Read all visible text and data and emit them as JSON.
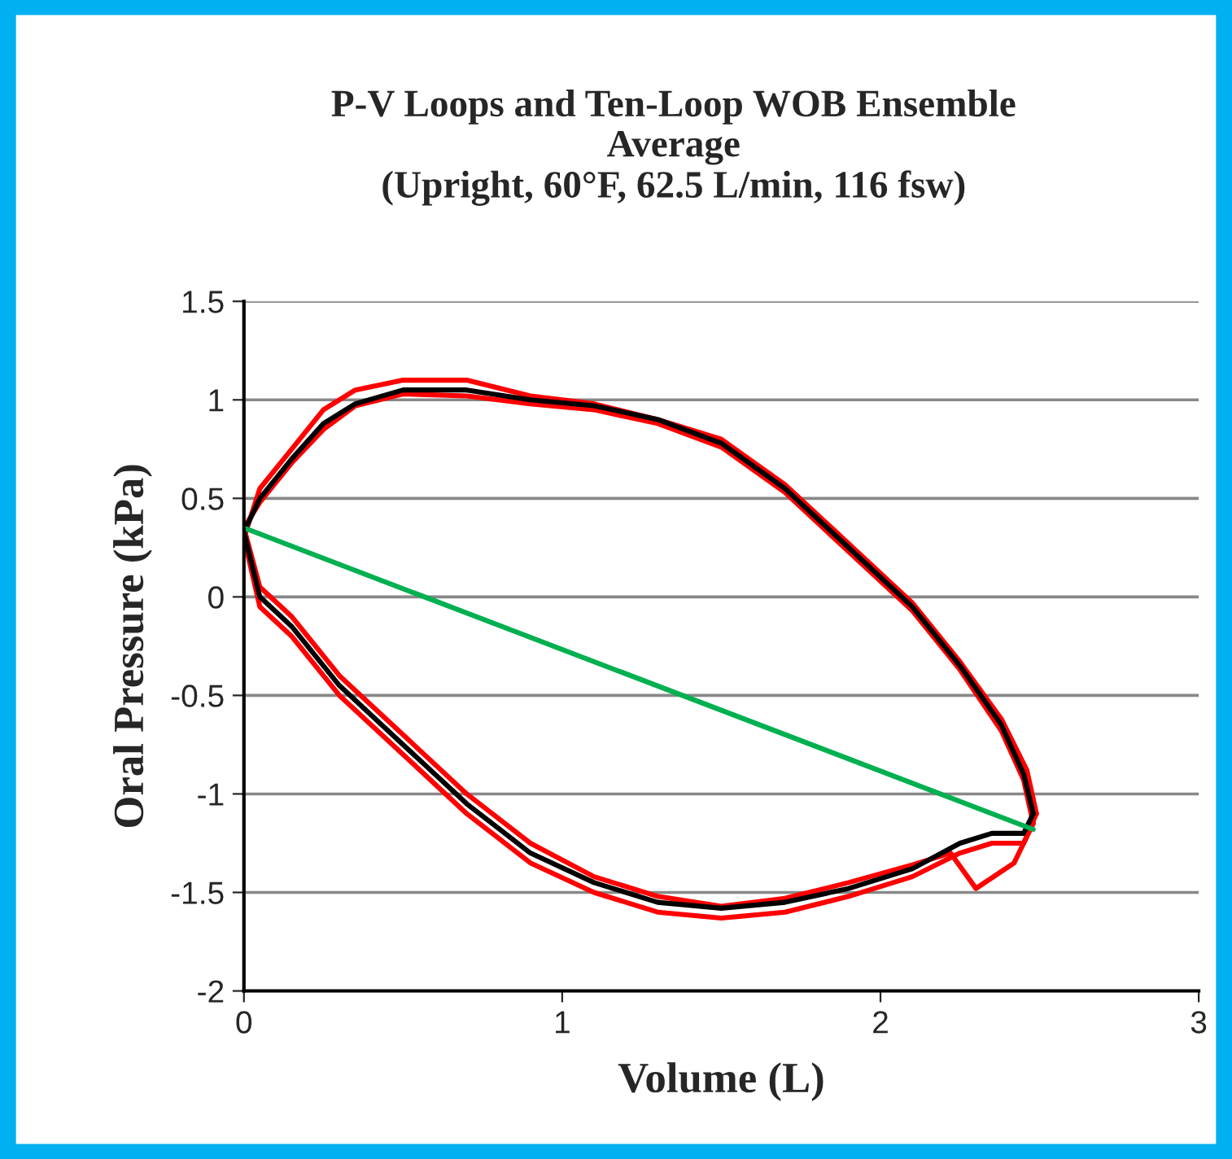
{
  "chart_data": {
    "type": "line",
    "title": "P-V Loops and Ten-Loop WOB Ensemble\nAverage\n(Upright, 60°F, 62.5 L/min, 116 fsw)",
    "xlabel": "Volume (L)",
    "ylabel": "Oral Pressure (kPa)",
    "xlim": [
      0,
      3
    ],
    "xticks": [
      0,
      1,
      2,
      3
    ],
    "ylim": [
      -2,
      1.5
    ],
    "yticks": [
      -2,
      -1.5,
      -1,
      -0.5,
      0,
      0.5,
      1,
      1.5
    ],
    "grid": "y",
    "legend": false,
    "series": [
      {
        "color": "#ff0000",
        "x": [
          0,
          0.05,
          0.15,
          0.25,
          0.35,
          0.5,
          0.7,
          0.9,
          1.1,
          1.3,
          1.5,
          1.7,
          1.9,
          2.1,
          2.25,
          2.38,
          2.46,
          2.49
        ],
        "values": [
          0.3,
          0.55,
          0.75,
          0.95,
          1.05,
          1.1,
          1.1,
          1.02,
          0.98,
          0.9,
          0.8,
          0.57,
          0.27,
          -0.03,
          -0.33,
          -0.62,
          -0.88,
          -1.1
        ]
      },
      {
        "color": "#ff0000",
        "x": [
          0,
          0.05,
          0.15,
          0.3,
          0.5,
          0.7,
          0.9,
          1.1,
          1.3,
          1.5,
          1.7,
          1.9,
          2.1,
          2.25,
          2.35,
          2.45,
          2.49
        ],
        "values": [
          0.3,
          -0.05,
          -0.2,
          -0.5,
          -0.8,
          -1.1,
          -1.35,
          -1.5,
          -1.6,
          -1.63,
          -1.6,
          -1.52,
          -1.42,
          -1.3,
          -1.25,
          -1.25,
          -1.1
        ]
      },
      {
        "color": "#ff0000",
        "x": [
          0,
          0.05,
          0.15,
          0.25,
          0.35,
          0.5,
          0.7,
          0.9,
          1.1,
          1.3,
          1.5,
          1.7,
          1.9,
          2.1,
          2.25,
          2.38,
          2.45,
          2.48
        ],
        "values": [
          0.35,
          0.48,
          0.68,
          0.85,
          0.97,
          1.03,
          1.02,
          0.98,
          0.95,
          0.88,
          0.76,
          0.53,
          0.23,
          -0.07,
          -0.37,
          -0.68,
          -0.93,
          -1.15
        ]
      },
      {
        "color": "#ff0000",
        "x": [
          0,
          0.05,
          0.15,
          0.3,
          0.5,
          0.7,
          0.9,
          1.1,
          1.3,
          1.5,
          1.7,
          1.9,
          2.1,
          2.22,
          2.3,
          2.42,
          2.48
        ],
        "values": [
          0.35,
          0.05,
          -0.1,
          -0.4,
          -0.7,
          -1.0,
          -1.25,
          -1.42,
          -1.52,
          -1.57,
          -1.53,
          -1.45,
          -1.36,
          -1.3,
          -1.48,
          -1.35,
          -1.15
        ]
      },
      {
        "color": "#000000",
        "x": [
          0,
          0.05,
          0.15,
          0.25,
          0.35,
          0.5,
          0.7,
          0.9,
          1.1,
          1.3,
          1.5,
          1.7,
          1.9,
          2.1,
          2.25,
          2.38,
          2.45,
          2.48
        ],
        "values": [
          0.33,
          0.5,
          0.7,
          0.88,
          0.98,
          1.05,
          1.05,
          1.0,
          0.97,
          0.9,
          0.78,
          0.55,
          0.25,
          -0.05,
          -0.35,
          -0.65,
          -0.9,
          -1.1
        ]
      },
      {
        "color": "#000000",
        "x": [
          0,
          0.05,
          0.15,
          0.3,
          0.5,
          0.7,
          0.9,
          1.1,
          1.3,
          1.5,
          1.7,
          1.9,
          2.1,
          2.25,
          2.35,
          2.45,
          2.48
        ],
        "values": [
          0.33,
          0.0,
          -0.15,
          -0.45,
          -0.75,
          -1.05,
          -1.3,
          -1.45,
          -1.55,
          -1.58,
          -1.55,
          -1.48,
          -1.38,
          -1.25,
          -1.2,
          -1.2,
          -1.1
        ]
      },
      {
        "color": "#00b050",
        "x": [
          0,
          2.48
        ],
        "values": [
          0.35,
          -1.18
        ]
      }
    ]
  }
}
